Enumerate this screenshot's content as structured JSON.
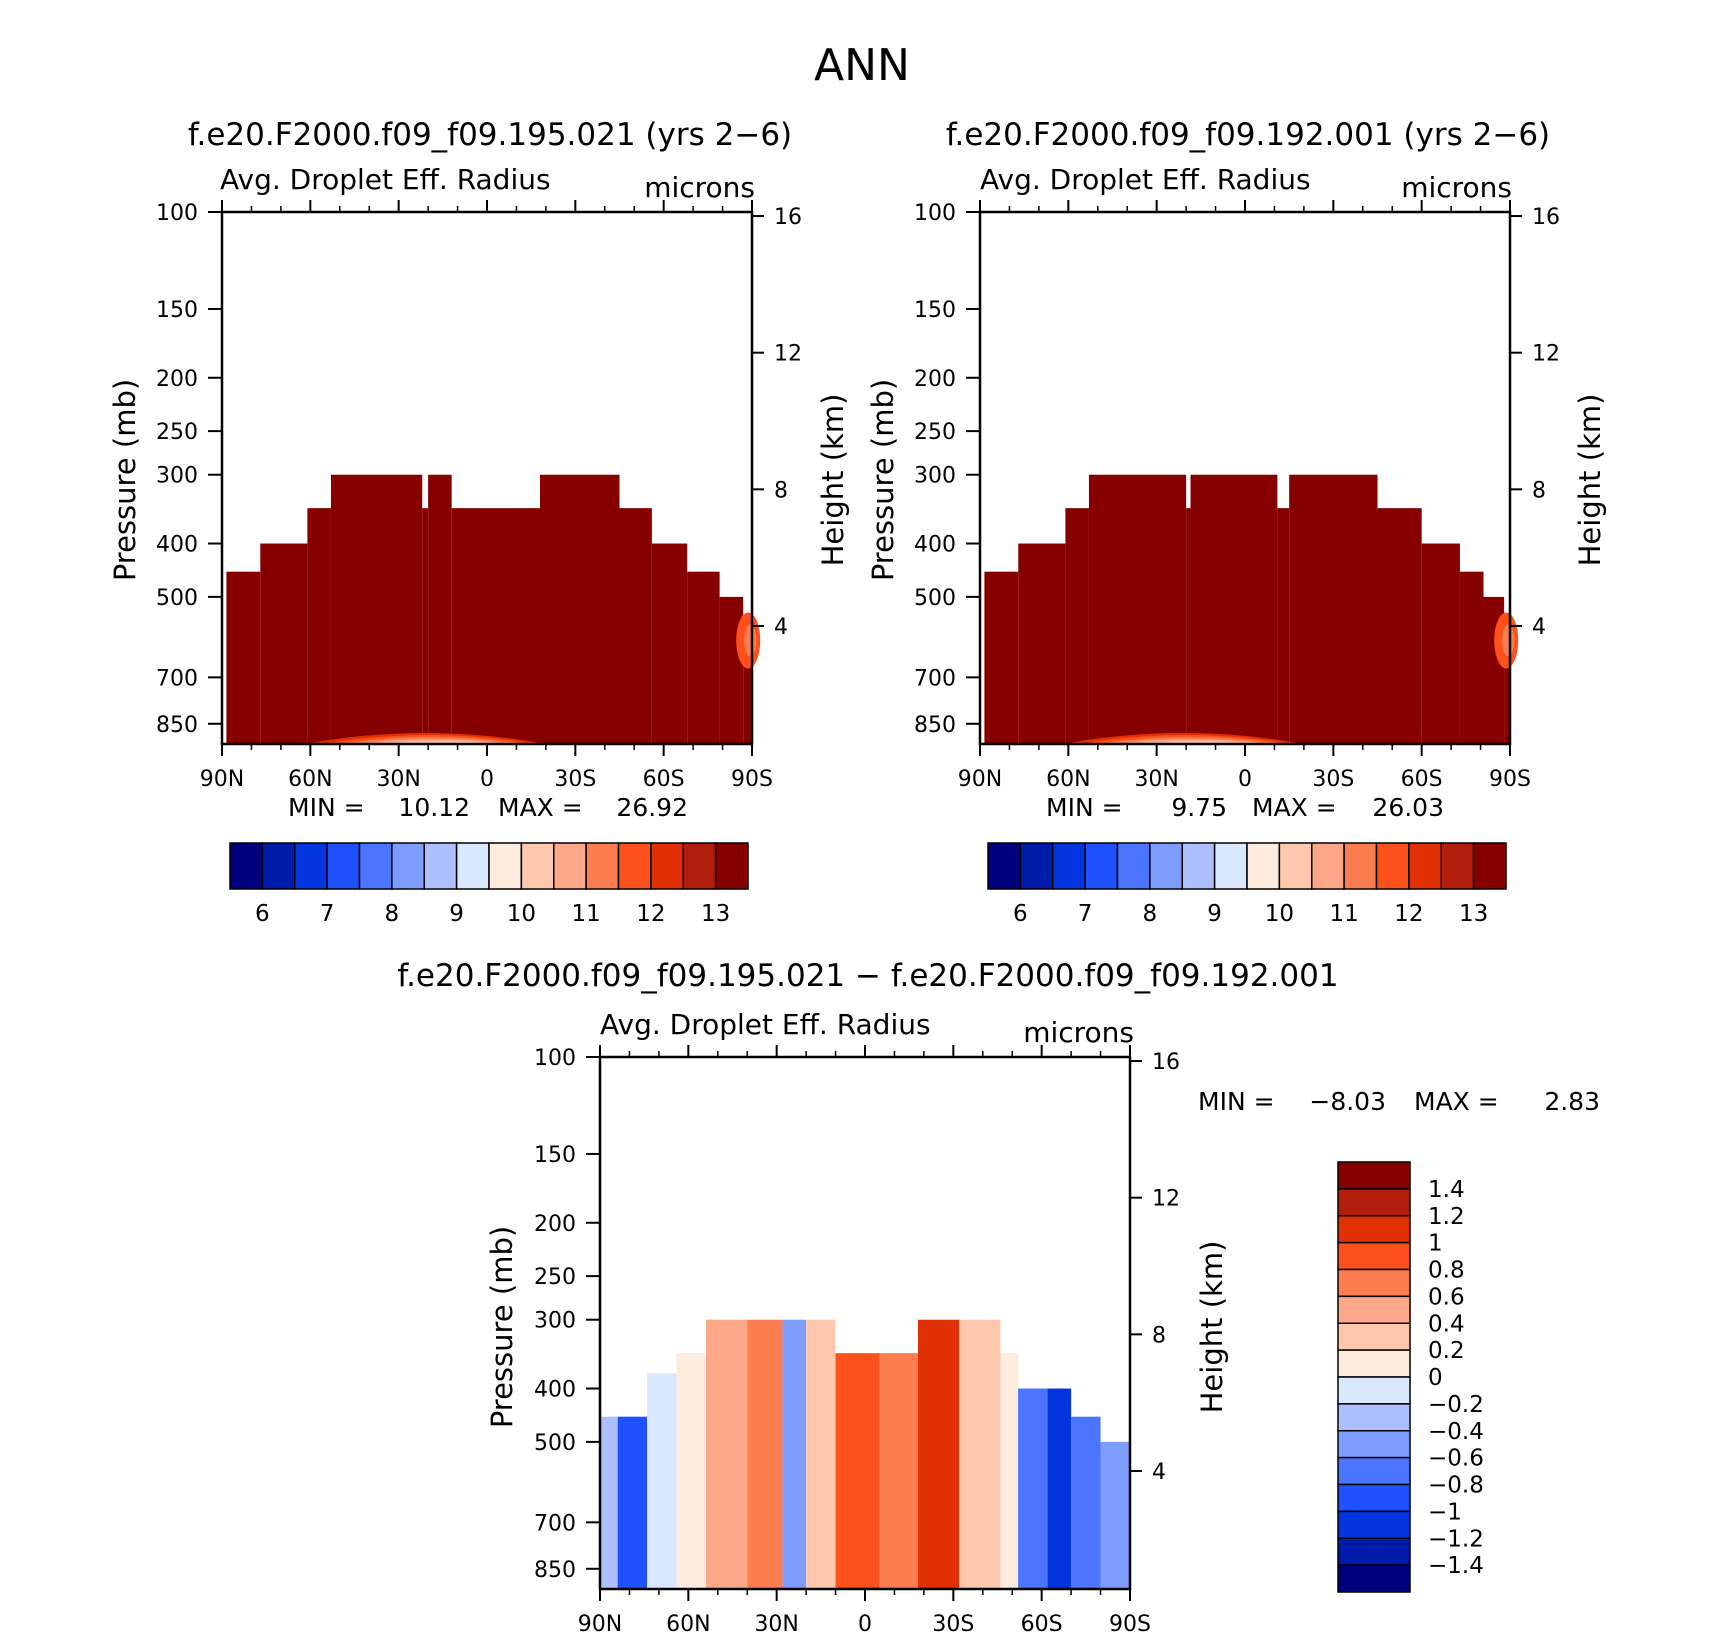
{
  "page_title": "ANN",
  "colors": {
    "seq": [
      "#00007f",
      "#001aaa",
      "#0436e0",
      "#1f52fd",
      "#4b75ff",
      "#7f9cff",
      "#aebfff",
      "#d9e8ff",
      "#fdebdd",
      "#fdc8ae",
      "#fca787",
      "#fc7e50",
      "#fc511d",
      "#e13104",
      "#b11e0c",
      "#870000"
    ],
    "diff": [
      "#00007f",
      "#001aaa",
      "#0436e0",
      "#1f52fd",
      "#4b75ff",
      "#7f9cff",
      "#aebfff",
      "#d9e8ff",
      "#fdebdd",
      "#fdc8ae",
      "#fca787",
      "#fc7e50",
      "#fc511d",
      "#e13104",
      "#b11e0c",
      "#870000"
    ]
  },
  "panels": [
    {
      "id": "test",
      "case_title": "f.e20.F2000.f09_f09.195.021 (yrs 2−6)",
      "variable": "Avg. Droplet Eff. Radius",
      "units": "microns",
      "ylabel": "Pressure (mb)",
      "y2label": "Height (km)",
      "min_label": "MIN =",
      "min_value": "10.12",
      "max_label": "MAX =",
      "max_value": "26.92",
      "colorbar_ticks": [
        "6",
        "7",
        "8",
        "9",
        "10",
        "11",
        "12",
        "13"
      ]
    },
    {
      "id": "control",
      "case_title": "f.e20.F2000.f09_f09.192.001 (yrs 2−6)",
      "variable": "Avg. Droplet Eff. Radius",
      "units": "microns",
      "ylabel": "Pressure (mb)",
      "y2label": "Height (km)",
      "min_label": "MIN =",
      "min_value": "9.75",
      "max_label": "MAX =",
      "max_value": "26.03",
      "colorbar_ticks": [
        "6",
        "7",
        "8",
        "9",
        "10",
        "11",
        "12",
        "13"
      ]
    },
    {
      "id": "diff",
      "case_title": "f.e20.F2000.f09_f09.195.021 − f.e20.F2000.f09_f09.192.001",
      "variable": "Avg. Droplet Eff. Radius",
      "units": "microns",
      "ylabel": "Pressure (mb)",
      "y2label": "Height (km)",
      "min_label": "MIN =",
      "min_value": "−8.03",
      "max_label": "MAX =",
      "max_value": "2.83",
      "colorbar_ticks": [
        "1.4",
        "1.2",
        "1",
        "0.8",
        "0.6",
        "0.4",
        "0.2",
        "0",
        "−0.2",
        "−0.4",
        "−0.6",
        "−0.8",
        "−1",
        "−1.2",
        "−1.4"
      ]
    }
  ],
  "chart_data": [
    {
      "type": "heatmap",
      "title": "f.e20.F2000.f09_f09.195.021 (yrs 2−6)",
      "variable": "Avg. Droplet Eff. Radius",
      "units": "microns",
      "x_ticks": [
        "90N",
        "60N",
        "30N",
        "0",
        "30S",
        "60S",
        "90S"
      ],
      "x_tick_values": [
        90,
        60,
        30,
        0,
        -30,
        -60,
        -90
      ],
      "xlim": [
        90,
        -90
      ],
      "y_ticks": [
        100,
        150,
        200,
        250,
        300,
        400,
        500,
        700,
        850
      ],
      "ylim": [
        100,
        925
      ],
      "y_scale": "log",
      "y2_ticks": [
        16,
        12,
        8,
        4
      ],
      "levels": [
        6,
        6.5,
        7,
        7.5,
        8,
        8.5,
        9,
        9.5,
        10,
        10.5,
        11,
        11.5,
        12,
        12.5,
        13
      ],
      "cloud_top_mb": [
        {
          "lat_from": 90,
          "lat_to": 88.5,
          "top_mb": 1000
        },
        {
          "lat_from": 88.5,
          "lat_to": 77,
          "top_mb": 450
        },
        {
          "lat_from": 77,
          "lat_to": 61,
          "top_mb": 400
        },
        {
          "lat_from": 61,
          "lat_to": 53,
          "top_mb": 345
        },
        {
          "lat_from": 53,
          "lat_to": 22,
          "top_mb": 300
        },
        {
          "lat_from": 22,
          "lat_to": 20,
          "top_mb": 345
        },
        {
          "lat_from": 20,
          "lat_to": 12,
          "top_mb": 300
        },
        {
          "lat_from": 12,
          "lat_to": -18,
          "top_mb": 345
        },
        {
          "lat_from": -18,
          "lat_to": -45,
          "top_mb": 300
        },
        {
          "lat_from": -45,
          "lat_to": -56,
          "top_mb": 345
        },
        {
          "lat_from": -56,
          "lat_to": -68,
          "top_mb": 400
        },
        {
          "lat_from": -68,
          "lat_to": -79,
          "top_mb": 450
        },
        {
          "lat_from": -79,
          "lat_to": -87,
          "top_mb": 500
        },
        {
          "lat_from": -87,
          "lat_to": -90,
          "top_mb": 540
        }
      ],
      "min": 10.12,
      "max": 26.92
    },
    {
      "type": "heatmap",
      "title": "f.e20.F2000.f09_f09.192.001 (yrs 2−6)",
      "variable": "Avg. Droplet Eff. Radius",
      "units": "microns",
      "x_ticks": [
        "90N",
        "60N",
        "30N",
        "0",
        "30S",
        "60S",
        "90S"
      ],
      "x_tick_values": [
        90,
        60,
        30,
        0,
        -30,
        -60,
        -90
      ],
      "xlim": [
        90,
        -90
      ],
      "y_ticks": [
        100,
        150,
        200,
        250,
        300,
        400,
        500,
        700,
        850
      ],
      "ylim": [
        100,
        925
      ],
      "y_scale": "log",
      "y2_ticks": [
        16,
        12,
        8,
        4
      ],
      "levels": [
        6,
        6.5,
        7,
        7.5,
        8,
        8.5,
        9,
        9.5,
        10,
        10.5,
        11,
        11.5,
        12,
        12.5,
        13
      ],
      "cloud_top_mb": [
        {
          "lat_from": 90,
          "lat_to": 88.5,
          "top_mb": 1000
        },
        {
          "lat_from": 88.5,
          "lat_to": 77,
          "top_mb": 450
        },
        {
          "lat_from": 77,
          "lat_to": 61,
          "top_mb": 400
        },
        {
          "lat_from": 61,
          "lat_to": 53,
          "top_mb": 345
        },
        {
          "lat_from": 53,
          "lat_to": 20,
          "top_mb": 300
        },
        {
          "lat_from": 20,
          "lat_to": 18.5,
          "top_mb": 345
        },
        {
          "lat_from": 18.5,
          "lat_to": -11,
          "top_mb": 300
        },
        {
          "lat_from": -11,
          "lat_to": -15,
          "top_mb": 345
        },
        {
          "lat_from": -15,
          "lat_to": -45,
          "top_mb": 300
        },
        {
          "lat_from": -45,
          "lat_to": -60,
          "top_mb": 345
        },
        {
          "lat_from": -60,
          "lat_to": -73,
          "top_mb": 400
        },
        {
          "lat_from": -73,
          "lat_to": -81,
          "top_mb": 450
        },
        {
          "lat_from": -81,
          "lat_to": -88,
          "top_mb": 500
        },
        {
          "lat_from": -88,
          "lat_to": -90,
          "top_mb": 540
        }
      ],
      "min": 9.75,
      "max": 26.03
    },
    {
      "type": "heatmap",
      "title": "f.e20.F2000.f09_f09.195.021 − f.e20.F2000.f09_f09.192.001",
      "variable": "Avg. Droplet Eff. Radius",
      "units": "microns",
      "x_ticks": [
        "90N",
        "60N",
        "30N",
        "0",
        "30S",
        "60S",
        "90S"
      ],
      "x_tick_values": [
        90,
        60,
        30,
        0,
        -30,
        -60,
        -90
      ],
      "xlim": [
        90,
        -90
      ],
      "y_ticks": [
        100,
        150,
        200,
        250,
        300,
        400,
        500,
        700,
        850
      ],
      "ylim": [
        100,
        925
      ],
      "y_scale": "log",
      "y2_ticks": [
        16,
        12,
        8,
        4
      ],
      "levels": [
        -1.4,
        -1.2,
        -1,
        -0.8,
        -0.6,
        -0.4,
        -0.2,
        0,
        0.2,
        0.4,
        0.6,
        0.8,
        1,
        1.2,
        1.4
      ],
      "columns": [
        {
          "lat_from": 90,
          "lat_to": 84,
          "top_mb": 450,
          "value": -0.3
        },
        {
          "lat_from": 84,
          "lat_to": 74,
          "top_mb": 450,
          "value": -0.9
        },
        {
          "lat_from": 74,
          "lat_to": 64,
          "top_mb": 375,
          "value": -0.2
        },
        {
          "lat_from": 64,
          "lat_to": 54,
          "top_mb": 345,
          "value": 0.1
        },
        {
          "lat_from": 54,
          "lat_to": 40,
          "top_mb": 300,
          "value": 0.5
        },
        {
          "lat_from": 40,
          "lat_to": 28,
          "top_mb": 300,
          "value": 0.7
        },
        {
          "lat_from": 28,
          "lat_to": 20,
          "top_mb": 300,
          "value": -0.5
        },
        {
          "lat_from": 20,
          "lat_to": 10,
          "top_mb": 300,
          "value": 0.3
        },
        {
          "lat_from": 10,
          "lat_to": -5,
          "top_mb": 345,
          "value": 0.9
        },
        {
          "lat_from": -5,
          "lat_to": -18,
          "top_mb": 345,
          "value": 0.7
        },
        {
          "lat_from": -18,
          "lat_to": -32,
          "top_mb": 300,
          "value": 1.0
        },
        {
          "lat_from": -32,
          "lat_to": -46,
          "top_mb": 300,
          "value": 0.3
        },
        {
          "lat_from": -46,
          "lat_to": -52,
          "top_mb": 345,
          "value": 0.1
        },
        {
          "lat_from": -52,
          "lat_to": -62,
          "top_mb": 400,
          "value": -0.7
        },
        {
          "lat_from": -62,
          "lat_to": -70,
          "top_mb": 400,
          "value": -1.1
        },
        {
          "lat_from": -70,
          "lat_to": -80,
          "top_mb": 450,
          "value": -0.8
        },
        {
          "lat_from": -80,
          "lat_to": -90,
          "top_mb": 500,
          "value": -0.5
        }
      ],
      "min": -8.03,
      "max": 2.83
    }
  ]
}
